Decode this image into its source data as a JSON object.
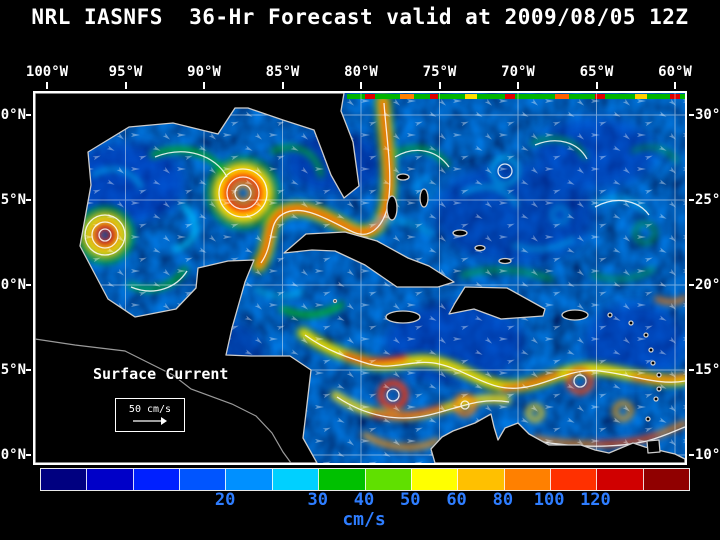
{
  "title": "NRL IASNFS  36-Hr Forecast valid at 2009/08/05 12Z",
  "map": {
    "lon_labels": [
      "100°W",
      "95°W",
      "90°W",
      "85°W",
      "80°W",
      "75°W",
      "70°W",
      "65°W",
      "60°W"
    ],
    "lat_labels": [
      "30°N",
      "25°N",
      "20°N",
      "15°N",
      "10°N"
    ],
    "legend_title": "Surface Current",
    "scale_label": "50 cm/s"
  },
  "colorbar": {
    "unit": "cm/s",
    "segments": [
      "#000080",
      "#0000c8",
      "#0020ff",
      "#0055ff",
      "#0090ff",
      "#00d0ff",
      "#00c000",
      "#60e000",
      "#ffff00",
      "#ffc000",
      "#ff8000",
      "#ff3000",
      "#d00000",
      "#900000"
    ],
    "ticks": [
      {
        "label": "20",
        "boundary": 4
      },
      {
        "label": "30",
        "boundary": 6
      },
      {
        "label": "40",
        "boundary": 7
      },
      {
        "label": "50",
        "boundary": 8
      },
      {
        "label": "60",
        "boundary": 9
      },
      {
        "label": "80",
        "boundary": 10
      },
      {
        "label": "100",
        "boundary": 11
      },
      {
        "label": "120",
        "boundary": 12
      }
    ]
  }
}
